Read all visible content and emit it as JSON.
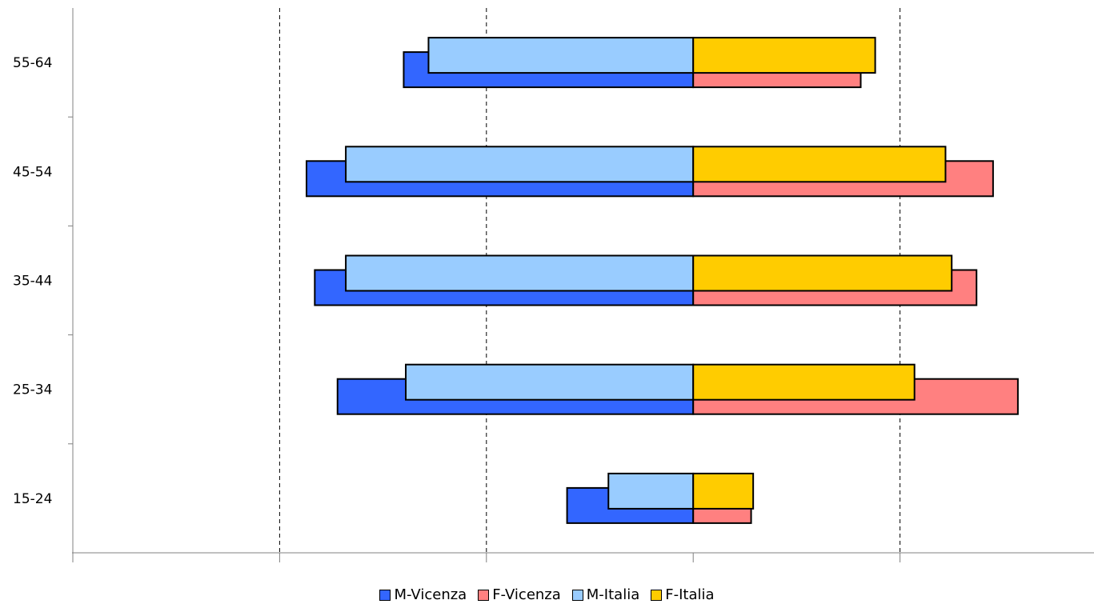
{
  "chart_data": {
    "type": "bar",
    "orientation": "horizontal",
    "layout": "population-pyramid",
    "categories": [
      "15-24",
      "25-34",
      "35-44",
      "45-54",
      "55-64"
    ],
    "xlim": [
      -3,
      2
    ],
    "grid": true,
    "legend_position": "bottom",
    "series": [
      {
        "name": "M-Vicenza",
        "color": "#3366ff",
        "values": [
          -0.61,
          -1.72,
          -1.83,
          -1.87,
          -1.4
        ]
      },
      {
        "name": "F-Vicenza",
        "color": "#ff8080",
        "values": [
          0.28,
          1.57,
          1.37,
          1.45,
          0.81
        ]
      },
      {
        "name": "M-Italia",
        "color": "#99ccff",
        "values": [
          -0.41,
          -1.39,
          -1.68,
          -1.68,
          -1.28
        ]
      },
      {
        "name": "F-Italia",
        "color": "#ffcc00",
        "values": [
          0.29,
          1.07,
          1.25,
          1.22,
          0.88
        ]
      }
    ]
  }
}
